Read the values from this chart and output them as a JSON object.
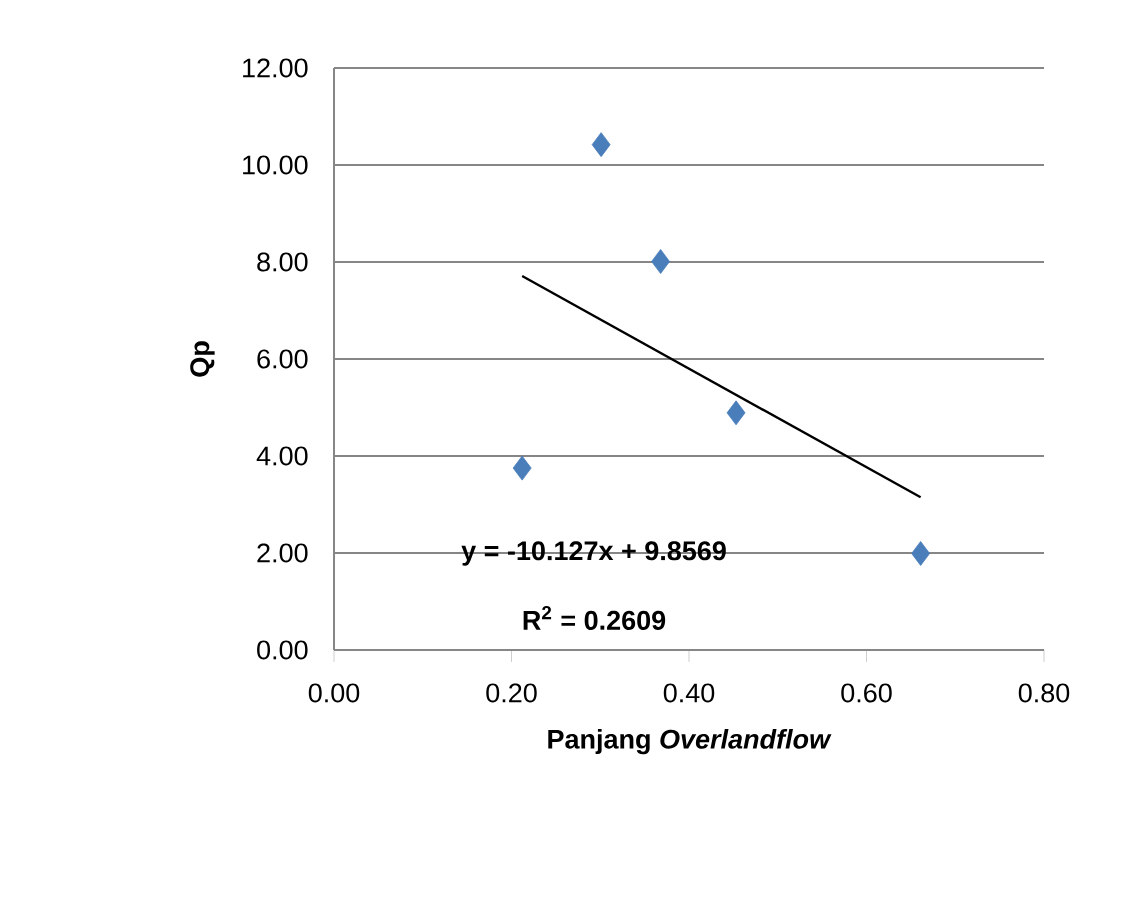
{
  "chart_data": {
    "type": "scatter",
    "xlabel": "Panjang *Overlandflow*",
    "ylabel": "**Qp**",
    "annotations": [
      "y = -10.127x + 9.8569",
      "R$^{2}$ = 0.2609"
    ],
    "xlim": [
      0,
      0.8
    ],
    "ylim": [
      0,
      12
    ],
    "xticks": [
      {
        "value": 0,
        "label": "0.00"
      },
      {
        "value": 0.2,
        "label": "0.20"
      },
      {
        "value": 0.4,
        "label": "0.40"
      },
      {
        "value": 0.6,
        "label": "0.60"
      },
      {
        "value": 0.8,
        "label": "0.80"
      }
    ],
    "yticks": [
      {
        "value": 0,
        "label": "0.00"
      },
      {
        "value": 2,
        "label": "2.00"
      },
      {
        "value": 4,
        "label": "4.00"
      },
      {
        "value": 6,
        "label": "6.00"
      },
      {
        "value": 8,
        "label": "8.00"
      },
      {
        "value": 10,
        "label": "10.00"
      },
      {
        "value": 12,
        "label": "12.00"
      }
    ],
    "grid": "y",
    "marker": "diamond",
    "series": [
      {
        "color": "#4a7ebb",
        "x": [
          0.212,
          0.301,
          0.368,
          0.453,
          0.661
        ],
        "values": [
          3.75,
          10.42,
          8.01,
          4.89,
          1.99
        ]
      },
      {
        "type": "line",
        "marker": "none",
        "color": "#000000",
        "x": [
          0.212,
          0.661
        ],
        "values": [
          7.71,
          3.15
        ]
      }
    ]
  }
}
